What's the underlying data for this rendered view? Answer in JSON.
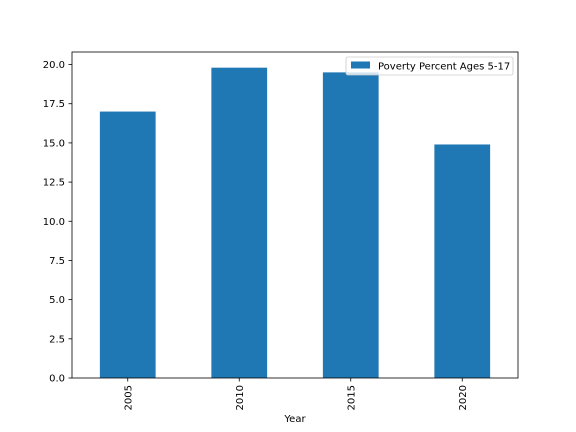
{
  "chart_data": {
    "type": "bar",
    "categories": [
      "2005",
      "2010",
      "2015",
      "2020"
    ],
    "series": [
      {
        "name": "Poverty Percent Ages 5-17",
        "values": [
          17.0,
          19.8,
          19.5,
          14.9
        ]
      }
    ],
    "xlabel": "Year",
    "ylabel": "",
    "ylim": [
      0,
      20.8
    ],
    "yticks": [
      "0.0",
      "2.5",
      "5.0",
      "7.5",
      "10.0",
      "12.5",
      "15.0",
      "17.5",
      "20.0"
    ],
    "grid": false,
    "legend_position": "top-right",
    "colors": {
      "bar": "#1f77b4"
    }
  }
}
